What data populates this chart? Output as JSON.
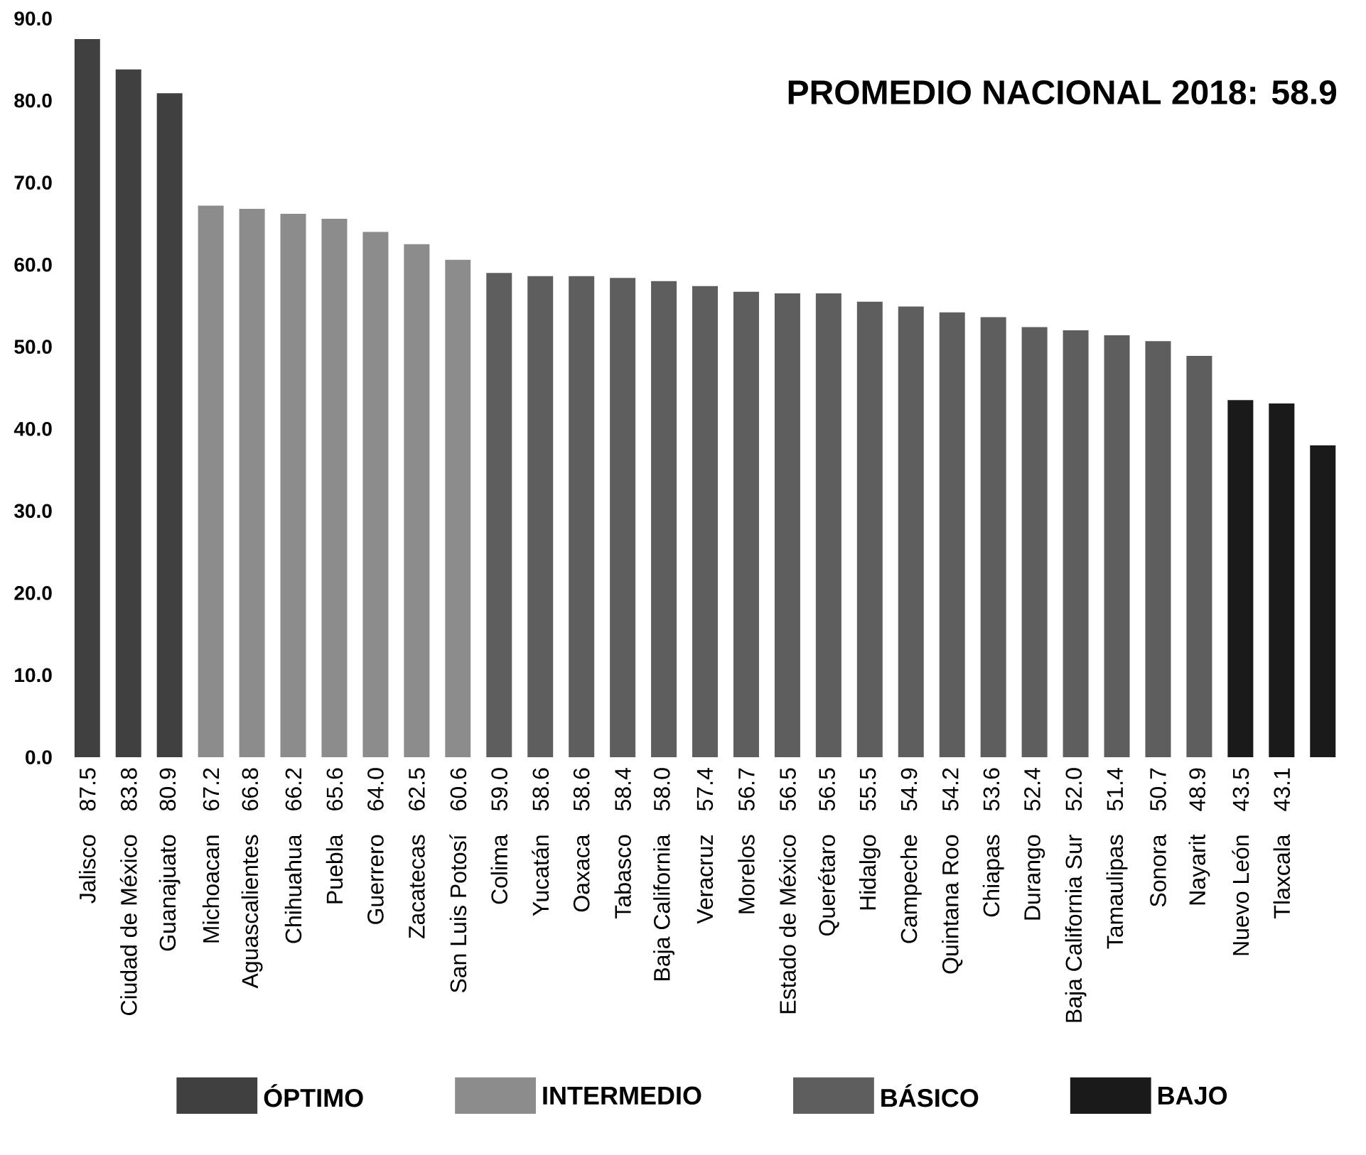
{
  "chart_data": {
    "type": "bar",
    "title": "PROMEDIO NACIONAL 2018: 58.9",
    "categories": [
      "Jalisco",
      "Ciudad de México",
      "Guanajuato",
      "Michoacan",
      "Aguascalientes",
      "Chihuahua",
      "Puebla",
      "Guerrero",
      "Zacatecas",
      "San Luis Potosí",
      "Colima",
      "Yucatán",
      "Oaxaca",
      "Tabasco",
      "Baja California",
      "Veracruz",
      "Morelos",
      "Estado de México",
      "Querétaro",
      "Hidalgo",
      "Campeche",
      "Quintana Roo",
      "Chiapas",
      "Durango",
      "Baja California Sur",
      "Tamaulipas",
      "Sonora",
      "Nayarit",
      "Nuevo León",
      "Tlaxcala",
      null
    ],
    "series": [
      {
        "name": "ÓPTIMO",
        "color": "#404040",
        "values": [
          87.5,
          83.8,
          80.9,
          null,
          null,
          null,
          null,
          null,
          null,
          null,
          null,
          null,
          null,
          null,
          null,
          null,
          null,
          null,
          null,
          null,
          null,
          null,
          null,
          null,
          null,
          null,
          null,
          null,
          null,
          null,
          null
        ],
        "value_labels": [
          "87.5",
          "83.8",
          "80.9",
          null,
          null,
          null,
          null,
          null,
          null,
          null,
          null,
          null,
          null,
          null,
          null,
          null,
          null,
          null,
          null,
          null,
          null,
          null,
          null,
          null,
          null,
          null,
          null,
          null,
          null,
          null,
          null
        ]
      },
      {
        "name": "INTERMEDIO",
        "color": "#8c8c8c",
        "values": [
          null,
          null,
          null,
          67.2,
          66.8,
          66.2,
          65.6,
          64.0,
          62.5,
          60.6,
          null,
          null,
          null,
          null,
          null,
          null,
          null,
          null,
          null,
          null,
          null,
          null,
          null,
          null,
          null,
          null,
          null,
          null,
          null,
          null,
          null
        ],
        "value_labels": [
          null,
          null,
          null,
          "67.2",
          "66.8",
          "66.2",
          "65.6",
          "64.0",
          "62.5",
          "60.6",
          null,
          null,
          null,
          null,
          null,
          null,
          null,
          null,
          null,
          null,
          null,
          null,
          null,
          null,
          null,
          null,
          null,
          null,
          null,
          null,
          null
        ]
      },
      {
        "name": "BÁSICO",
        "color": "#5e5e5e",
        "values": [
          null,
          null,
          null,
          null,
          null,
          null,
          null,
          null,
          null,
          null,
          59.0,
          58.6,
          58.6,
          58.4,
          58.0,
          57.4,
          56.7,
          56.5,
          56.5,
          55.5,
          54.9,
          54.2,
          53.6,
          52.4,
          52.0,
          51.4,
          50.7,
          48.9,
          null,
          null,
          null
        ],
        "value_labels": [
          null,
          null,
          null,
          null,
          null,
          null,
          null,
          null,
          null,
          null,
          "59.0",
          "58.6",
          "58.6",
          "58.4",
          "58.0",
          "57.4",
          "56.7",
          "56.5",
          "56.5",
          "55.5",
          "54.9",
          "54.2",
          "53.6",
          "52.4",
          "52.0",
          "51.4",
          "50.7",
          "48.9",
          null,
          null,
          null
        ]
      },
      {
        "name": "BAJO",
        "color": "#1a1a1a",
        "values": [
          null,
          null,
          null,
          null,
          null,
          null,
          null,
          null,
          null,
          null,
          null,
          null,
          null,
          null,
          null,
          null,
          null,
          null,
          null,
          null,
          null,
          null,
          null,
          null,
          null,
          null,
          null,
          null,
          43.5,
          43.1,
          38.0
        ],
        "value_labels": [
          null,
          null,
          null,
          null,
          null,
          null,
          null,
          null,
          null,
          null,
          null,
          null,
          null,
          null,
          null,
          null,
          null,
          null,
          null,
          null,
          null,
          null,
          null,
          null,
          null,
          null,
          null,
          null,
          "43.5",
          "43.1",
          null
        ]
      }
    ],
    "ylim": [
      0,
      90
    ],
    "yticks": [
      {
        "value": 0,
        "label": "0.0"
      },
      {
        "value": 10,
        "label": "10.0"
      },
      {
        "value": 20,
        "label": "20.0"
      },
      {
        "value": 30,
        "label": "30.0"
      },
      {
        "value": 40,
        "label": "40.0"
      },
      {
        "value": 50,
        "label": "50.0"
      },
      {
        "value": 60,
        "label": "60.0"
      },
      {
        "value": 70,
        "label": "70.0"
      },
      {
        "value": 80,
        "label": "80.0"
      },
      {
        "value": 90,
        "label": "90.0"
      }
    ],
    "grid": false,
    "legend": "bottom"
  }
}
